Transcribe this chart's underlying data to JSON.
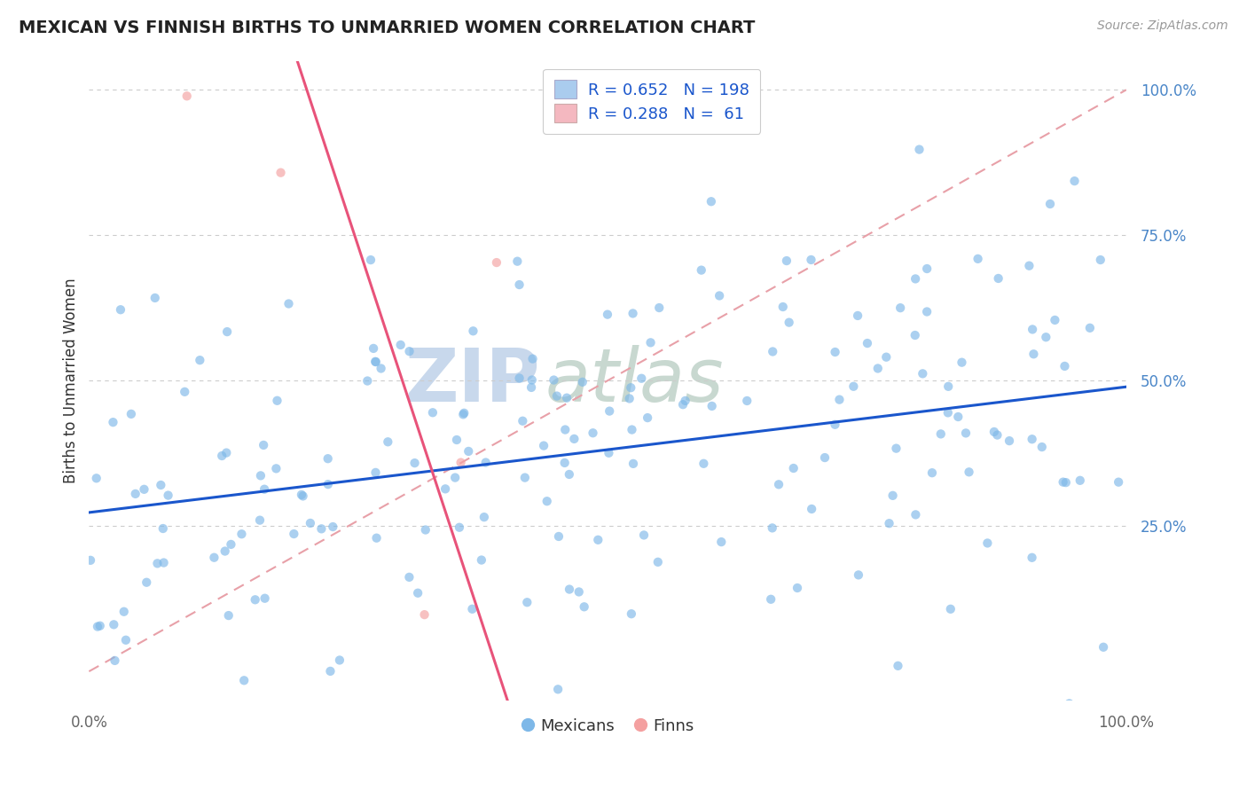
{
  "title": "MEXICAN VS FINNISH BIRTHS TO UNMARRIED WOMEN CORRELATION CHART",
  "source": "Source: ZipAtlas.com",
  "ylabel": "Births to Unmarried Women",
  "watermark_zip": "ZIP",
  "watermark_atlas": "atlas",
  "xlim": [
    0.0,
    1.0
  ],
  "ylim": [
    -0.05,
    1.05
  ],
  "r_mexican": 0.652,
  "n_mexican": 198,
  "r_finnish": 0.288,
  "n_finnish": 61,
  "yticks": [
    0.25,
    0.5,
    0.75,
    1.0
  ],
  "ytick_labels": [
    "25.0%",
    "50.0%",
    "75.0%",
    "100.0%"
  ],
  "scatter_blue_color": "#7eb8e8",
  "scatter_pink_color": "#f4a0a0",
  "line_blue_color": "#1a56cc",
  "line_pink_color": "#e8537a",
  "dashed_line_color": "#e8a0a8",
  "legend_blue_fill": "#aaccee",
  "legend_pink_fill": "#f4b8c0",
  "background_color": "#ffffff",
  "grid_color": "#cccccc",
  "title_color": "#222222",
  "watermark_zip_color": "#c8d8ec",
  "watermark_atlas_color": "#c8d8d0",
  "watermark_fontsize": 60,
  "title_fontsize": 14,
  "source_fontsize": 10
}
